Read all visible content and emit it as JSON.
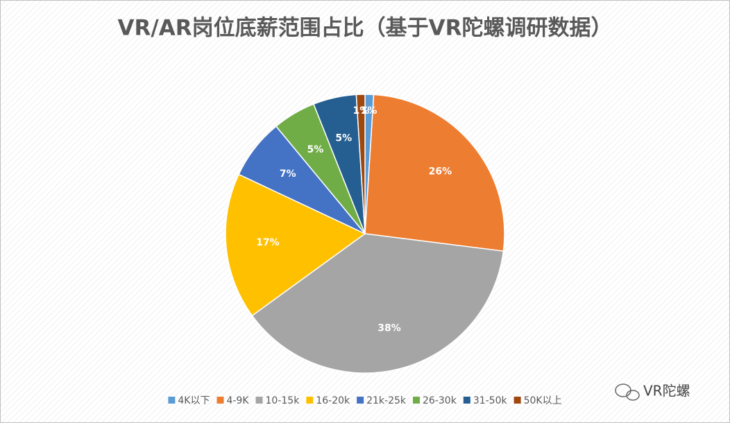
{
  "chart_data": {
    "type": "pie",
    "title": "VR/AR岗位底薪范围占比（基于VR陀螺调研数据）",
    "categories": [
      "4K以下",
      "4-9K",
      "10-15k",
      "16-20k",
      "21k-25k",
      "26-30k",
      "31-50k",
      "50K以上"
    ],
    "values": [
      1,
      26,
      38,
      17,
      7,
      5,
      5,
      1
    ],
    "value_labels": [
      "1%",
      "26%",
      "38%",
      "17%",
      "7%",
      "5%",
      "5%",
      "1%"
    ],
    "colors": [
      "#5b9bd5",
      "#ed7d31",
      "#a5a5a5",
      "#ffc000",
      "#4472c4",
      "#70ad47",
      "#255e91",
      "#9e480e"
    ],
    "legend": "bottom"
  },
  "watermark": "VR陀螺"
}
